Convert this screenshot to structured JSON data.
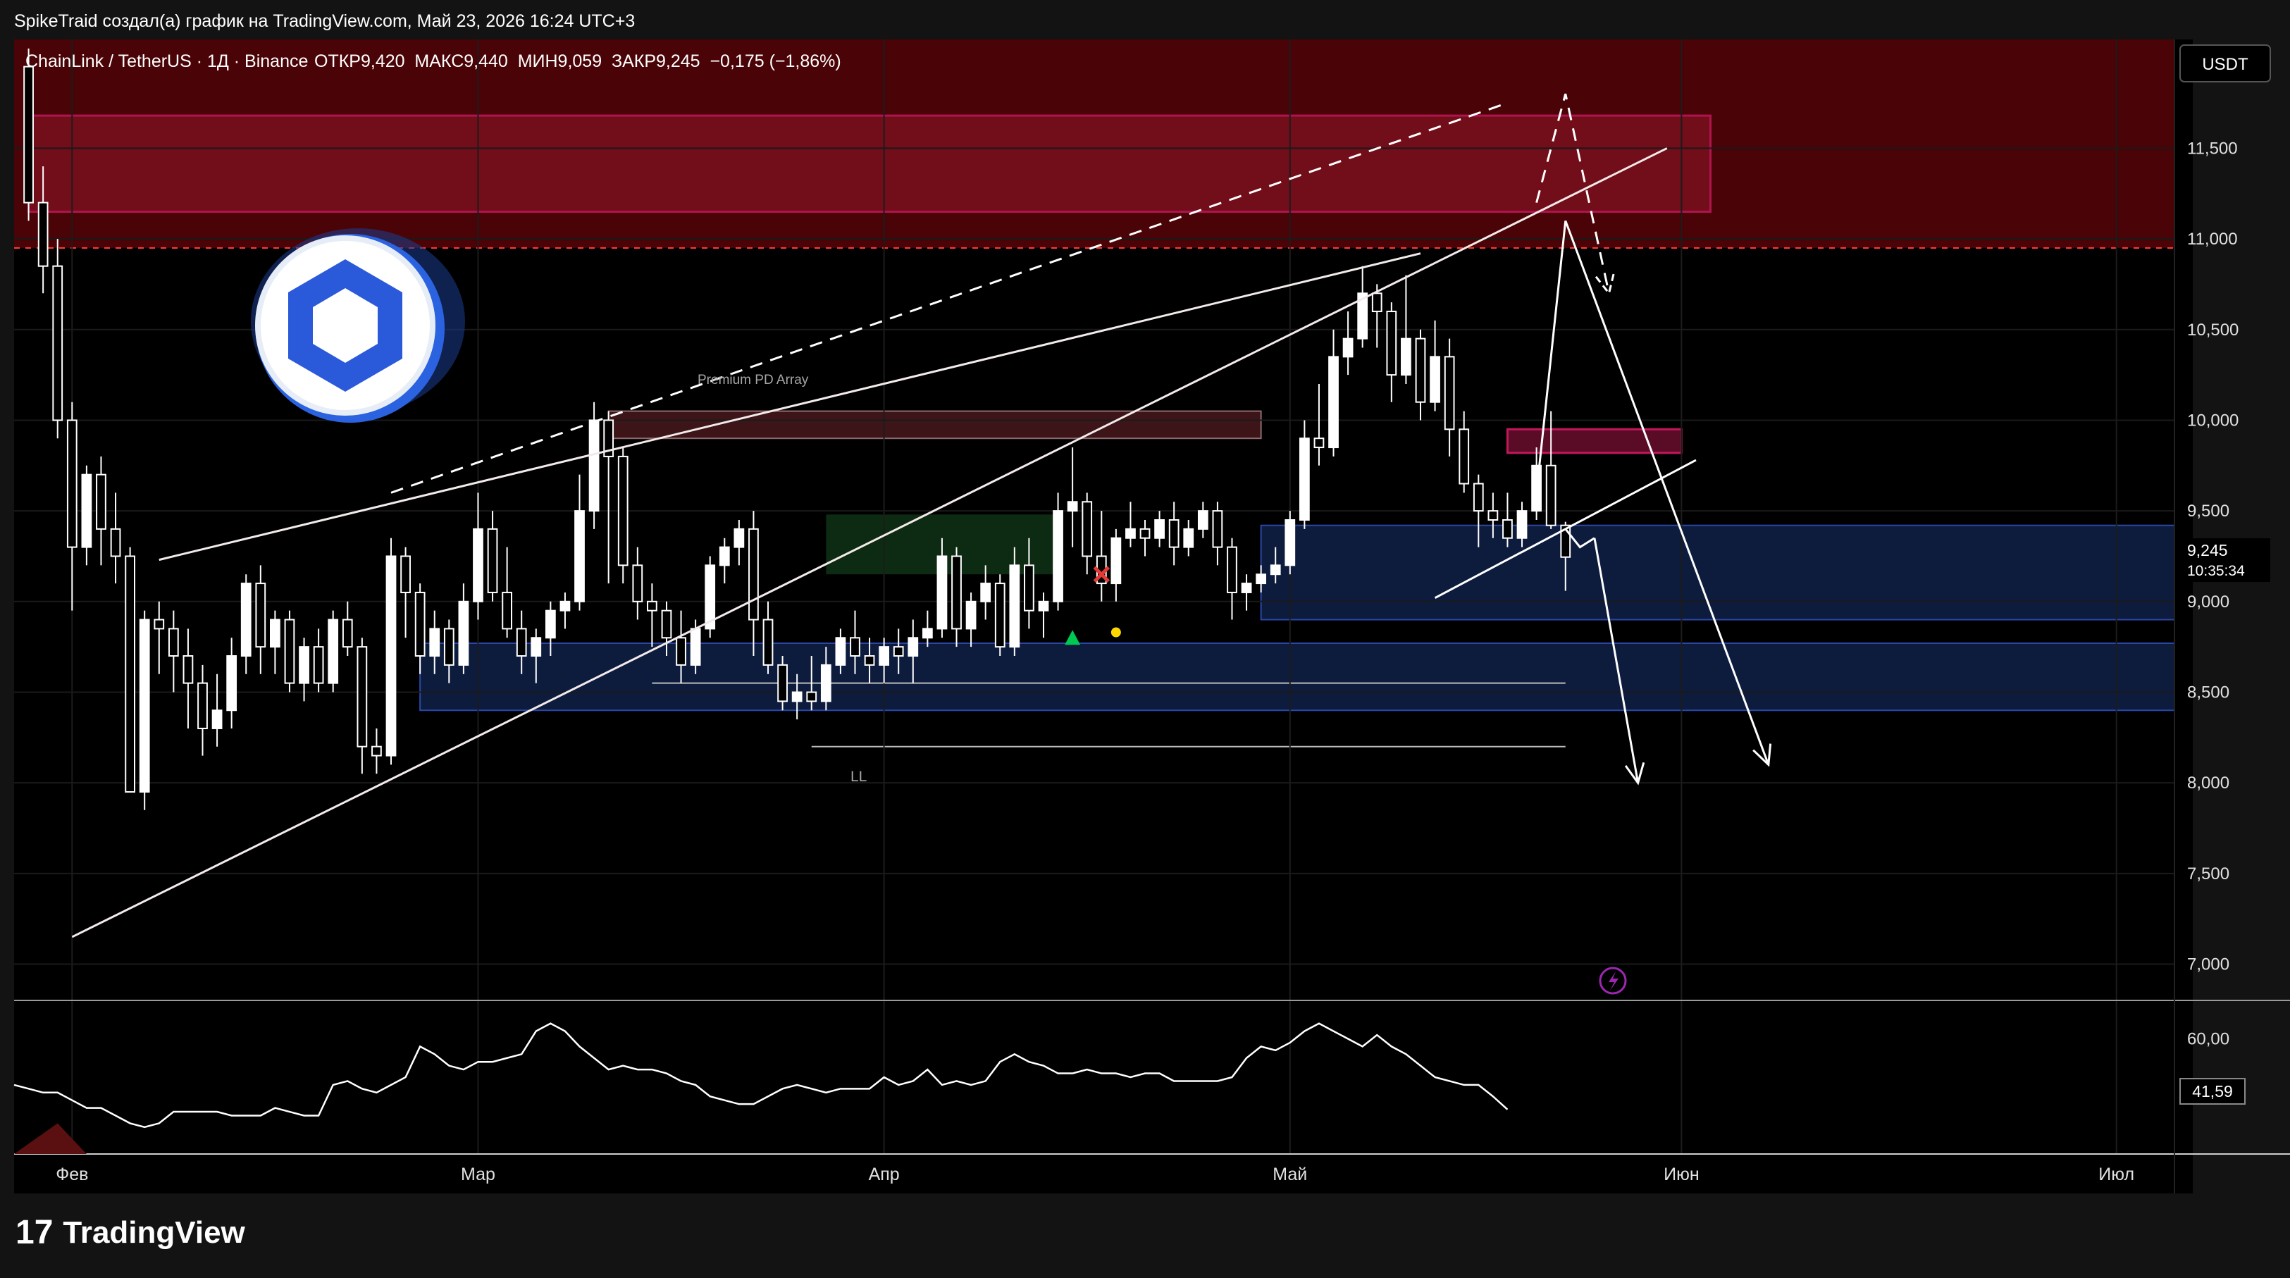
{
  "header": {
    "credit": "SpikeTraid создал(а) график на TradingView.com, Май 23, 2026 16:24 UTC+3",
    "symbol": "ChainLink / TetherUS · 1Д · Binance",
    "ohlc": "ОТКР9,420  МАКС9,440  МИН9,059  ЗАКР9,245  −0,175 (−1,86%)"
  },
  "footer": {
    "brand": "TradingView"
  },
  "chart_data": [
    {
      "type": "candlestick",
      "symbol": "ChainLink / TetherUS",
      "interval": "1Д",
      "exchange": "Binance",
      "currency": "USDT",
      "open": 9.42,
      "high": 9.44,
      "low": 9.059,
      "close": 9.245,
      "change": "−0,175",
      "change_pct": "−1,86%",
      "last_price_label": "9,245",
      "countdown": "10:35:34",
      "ylim": [
        6.8,
        12.1
      ],
      "y_ticks": [
        7.0,
        7.5,
        8.0,
        8.5,
        9.0,
        9.5,
        10.0,
        10.5,
        11.0,
        11.5
      ],
      "y_tick_labels": [
        "7,000",
        "7,500",
        "8,000",
        "8,500",
        "9,000",
        "9,500",
        "10,000",
        "10,500",
        "11,000",
        "11,500"
      ],
      "x_labels": [
        "Фев",
        "Мар",
        "Апр",
        "Май",
        "Июн",
        "Июл"
      ],
      "x_label_days": [
        0,
        28,
        56,
        84,
        111,
        141
      ],
      "x_domain_days": [
        -4,
        145
      ],
      "candles": [
        [
          -3,
          11.95,
          12.05,
          11.1,
          11.2
        ],
        [
          -2,
          11.2,
          11.4,
          10.7,
          10.85
        ],
        [
          -1,
          10.85,
          11.0,
          9.9,
          10.0
        ],
        [
          0,
          10.0,
          10.1,
          8.95,
          9.3
        ],
        [
          1,
          9.3,
          9.75,
          9.2,
          9.7
        ],
        [
          2,
          9.7,
          9.8,
          9.2,
          9.4
        ],
        [
          3,
          9.4,
          9.6,
          9.1,
          9.25
        ],
        [
          4,
          9.25,
          9.3,
          8.0,
          7.95
        ],
        [
          5,
          7.95,
          8.95,
          7.85,
          8.9
        ],
        [
          6,
          8.9,
          9.0,
          8.6,
          8.85
        ],
        [
          7,
          8.85,
          8.95,
          8.5,
          8.7
        ],
        [
          8,
          8.7,
          8.85,
          8.3,
          8.55
        ],
        [
          9,
          8.55,
          8.65,
          8.15,
          8.3
        ],
        [
          10,
          8.3,
          8.6,
          8.2,
          8.4
        ],
        [
          11,
          8.4,
          8.8,
          8.3,
          8.7
        ],
        [
          12,
          8.7,
          9.15,
          8.6,
          9.1
        ],
        [
          13,
          9.1,
          9.2,
          8.6,
          8.75
        ],
        [
          14,
          8.75,
          8.95,
          8.6,
          8.9
        ],
        [
          15,
          8.9,
          8.95,
          8.5,
          8.55
        ],
        [
          16,
          8.55,
          8.8,
          8.45,
          8.75
        ],
        [
          17,
          8.75,
          8.85,
          8.5,
          8.55
        ],
        [
          18,
          8.55,
          8.95,
          8.5,
          8.9
        ],
        [
          19,
          8.9,
          9.0,
          8.7,
          8.75
        ],
        [
          20,
          8.75,
          8.8,
          8.05,
          8.2
        ],
        [
          21,
          8.2,
          8.3,
          8.05,
          8.15
        ],
        [
          22,
          8.15,
          9.35,
          8.1,
          9.25
        ],
        [
          23,
          9.25,
          9.3,
          8.8,
          9.05
        ],
        [
          24,
          9.05,
          9.1,
          8.6,
          8.7
        ],
        [
          25,
          8.7,
          8.95,
          8.6,
          8.85
        ],
        [
          26,
          8.85,
          8.9,
          8.55,
          8.65
        ],
        [
          27,
          8.65,
          9.1,
          8.6,
          9.0
        ],
        [
          28,
          9.0,
          9.6,
          8.9,
          9.4
        ],
        [
          29,
          9.4,
          9.5,
          9.0,
          9.05
        ],
        [
          30,
          9.05,
          9.3,
          8.8,
          8.85
        ],
        [
          31,
          8.85,
          8.95,
          8.6,
          8.7
        ],
        [
          32,
          8.7,
          8.85,
          8.55,
          8.8
        ],
        [
          33,
          8.8,
          9.0,
          8.7,
          8.95
        ],
        [
          34,
          8.95,
          9.05,
          8.85,
          9.0
        ],
        [
          35,
          9.0,
          9.7,
          8.95,
          9.5
        ],
        [
          36,
          9.5,
          10.1,
          9.4,
          10.0
        ],
        [
          37,
          10.0,
          10.05,
          9.1,
          9.8
        ],
        [
          38,
          9.8,
          9.85,
          9.1,
          9.2
        ],
        [
          39,
          9.2,
          9.3,
          8.9,
          9.0
        ],
        [
          40,
          9.0,
          9.1,
          8.75,
          8.95
        ],
        [
          41,
          8.95,
          9.0,
          8.7,
          8.8
        ],
        [
          42,
          8.8,
          8.95,
          8.55,
          8.65
        ],
        [
          43,
          8.65,
          8.9,
          8.6,
          8.85
        ],
        [
          44,
          8.85,
          9.25,
          8.8,
          9.2
        ],
        [
          45,
          9.2,
          9.35,
          9.1,
          9.3
        ],
        [
          46,
          9.3,
          9.45,
          9.2,
          9.4
        ],
        [
          47,
          9.4,
          9.5,
          8.7,
          8.9
        ],
        [
          48,
          8.9,
          9.0,
          8.6,
          8.65
        ],
        [
          49,
          8.65,
          8.7,
          8.4,
          8.45
        ],
        [
          50,
          8.45,
          8.6,
          8.35,
          8.5
        ],
        [
          51,
          8.5,
          8.7,
          8.4,
          8.45
        ],
        [
          52,
          8.45,
          8.75,
          8.4,
          8.65
        ],
        [
          53,
          8.65,
          8.85,
          8.6,
          8.8
        ],
        [
          54,
          8.8,
          8.95,
          8.6,
          8.7
        ],
        [
          55,
          8.7,
          8.8,
          8.55,
          8.65
        ],
        [
          56,
          8.65,
          8.8,
          8.55,
          8.75
        ],
        [
          57,
          8.75,
          8.85,
          8.6,
          8.7
        ],
        [
          58,
          8.7,
          8.9,
          8.55,
          8.8
        ],
        [
          59,
          8.8,
          8.95,
          8.75,
          8.85
        ],
        [
          60,
          8.85,
          9.35,
          8.8,
          9.25
        ],
        [
          61,
          9.25,
          9.3,
          8.75,
          8.85
        ],
        [
          62,
          8.85,
          9.05,
          8.75,
          9.0
        ],
        [
          63,
          9.0,
          9.2,
          8.9,
          9.1
        ],
        [
          64,
          9.1,
          9.15,
          8.7,
          8.75
        ],
        [
          65,
          8.75,
          9.3,
          8.7,
          9.2
        ],
        [
          66,
          9.2,
          9.35,
          8.85,
          8.95
        ],
        [
          67,
          8.95,
          9.05,
          8.8,
          9.0
        ],
        [
          68,
          9.0,
          9.6,
          8.95,
          9.5
        ],
        [
          69,
          9.5,
          9.85,
          9.3,
          9.55
        ],
        [
          70,
          9.55,
          9.6,
          9.15,
          9.25
        ],
        [
          71,
          9.25,
          9.5,
          9.0,
          9.1
        ],
        [
          72,
          9.1,
          9.4,
          9.0,
          9.35
        ],
        [
          73,
          9.35,
          9.55,
          9.3,
          9.4
        ],
        [
          74,
          9.4,
          9.45,
          9.25,
          9.35
        ],
        [
          75,
          9.35,
          9.5,
          9.3,
          9.45
        ],
        [
          76,
          9.45,
          9.55,
          9.2,
          9.3
        ],
        [
          77,
          9.3,
          9.45,
          9.25,
          9.4
        ],
        [
          78,
          9.4,
          9.55,
          9.35,
          9.5
        ],
        [
          79,
          9.5,
          9.55,
          9.2,
          9.3
        ],
        [
          80,
          9.3,
          9.35,
          8.9,
          9.05
        ],
        [
          81,
          9.05,
          9.15,
          8.95,
          9.1
        ],
        [
          82,
          9.1,
          9.2,
          9.05,
          9.15
        ],
        [
          83,
          9.15,
          9.3,
          9.1,
          9.2
        ],
        [
          84,
          9.2,
          9.5,
          9.15,
          9.45
        ],
        [
          85,
          9.45,
          10.0,
          9.4,
          9.9
        ],
        [
          86,
          9.9,
          10.2,
          9.75,
          9.85
        ],
        [
          87,
          9.85,
          10.5,
          9.8,
          10.35
        ],
        [
          88,
          10.35,
          10.6,
          10.25,
          10.45
        ],
        [
          89,
          10.45,
          10.85,
          10.4,
          10.7
        ],
        [
          90,
          10.7,
          10.75,
          10.4,
          10.6
        ],
        [
          91,
          10.6,
          10.65,
          10.1,
          10.25
        ],
        [
          92,
          10.25,
          10.8,
          10.2,
          10.45
        ],
        [
          93,
          10.45,
          10.5,
          10.0,
          10.1
        ],
        [
          94,
          10.1,
          10.55,
          10.05,
          10.35
        ],
        [
          95,
          10.35,
          10.45,
          9.8,
          9.95
        ],
        [
          96,
          9.95,
          10.05,
          9.6,
          9.65
        ],
        [
          97,
          9.65,
          9.7,
          9.3,
          9.5
        ],
        [
          98,
          9.5,
          9.6,
          9.35,
          9.45
        ],
        [
          99,
          9.45,
          9.6,
          9.3,
          9.35
        ],
        [
          100,
          9.35,
          9.55,
          9.3,
          9.5
        ],
        [
          101,
          9.5,
          9.85,
          9.45,
          9.75
        ],
        [
          102,
          9.75,
          10.05,
          9.4,
          9.42
        ],
        [
          103,
          9.42,
          9.44,
          9.059,
          9.245
        ]
      ],
      "zones": [
        {
          "kind": "supply",
          "low": 10.95,
          "high": 12.1,
          "color": "#4a0306"
        },
        {
          "kind": "supply-box",
          "low": 11.15,
          "high": 11.68,
          "from_day": -3,
          "to_day": 113,
          "color": "#c2185b"
        },
        {
          "kind": "premium",
          "low": 9.9,
          "high": 10.05,
          "from_day": 37,
          "to_day": 82,
          "label": "Premium PD Array"
        },
        {
          "kind": "resistance-small",
          "low": 9.82,
          "high": 9.95,
          "from_day": 99,
          "to_day": 111,
          "color": "#c2185b"
        },
        {
          "kind": "demand",
          "low": 8.4,
          "high": 8.77,
          "from_day": 24,
          "to_day": 145,
          "color": "#0d1b3d"
        },
        {
          "kind": "demand",
          "low": 8.9,
          "high": 9.42,
          "from_day": 82,
          "to_day": 145,
          "color": "#0d1b3d"
        },
        {
          "kind": "green",
          "low": 9.15,
          "high": 9.48,
          "from_day": 52,
          "to_day": 68,
          "color": "#0d2a12"
        }
      ],
      "levels": [
        {
          "value": 10.95,
          "style": "dashed",
          "color": "#ff3b3b"
        },
        {
          "value": 8.55,
          "from_day": 40,
          "to_day": 103,
          "color": "#bdbdbd"
        },
        {
          "value": 8.2,
          "from_day": 51,
          "to_day": 103,
          "color": "#bdbdbd",
          "label": "LL"
        }
      ],
      "lines": [
        {
          "points": [
            [
              0,
              7.15
            ],
            [
              110,
              11.5
            ]
          ],
          "style": "solid"
        },
        {
          "points": [
            [
              6,
              9.23
            ],
            [
              93,
              10.92
            ]
          ],
          "style": "solid"
        },
        {
          "points": [
            [
              22,
              9.6
            ],
            [
              99,
              11.75
            ]
          ],
          "style": "dashed"
        },
        {
          "points": [
            [
              94,
              9.02
            ],
            [
              112,
              9.78
            ]
          ],
          "style": "solid"
        },
        {
          "points": [
            [
              103,
              11.1
            ],
            [
              101,
              9.6
            ]
          ],
          "style": "arrow-up"
        },
        {
          "points": [
            [
              103,
              11.1
            ],
            [
              117,
              8.1
            ]
          ],
          "style": "arrow"
        },
        {
          "points": [
            [
              105,
              9.35
            ],
            [
              108,
              8.0
            ]
          ],
          "style": "arrow"
        },
        {
          "points": [
            [
              103,
              9.4
            ],
            [
              104,
              9.3
            ],
            [
              105,
              9.35
            ]
          ],
          "style": "polyline"
        },
        {
          "points": [
            [
              101,
              11.2
            ],
            [
              103,
              11.8
            ],
            [
              106,
              10.7
            ]
          ],
          "style": "dashed-arrow"
        }
      ],
      "markers": [
        {
          "day": 69,
          "value": 8.8,
          "shape": "triangle-up",
          "color": "#00c853"
        },
        {
          "day": 72,
          "value": 8.83,
          "shape": "dot",
          "color": "#ffd600"
        },
        {
          "day": 71,
          "value": 9.15,
          "shape": "x",
          "color": "#e53935"
        }
      ]
    },
    {
      "type": "line",
      "indicator": "RSI",
      "last_value": 41.59,
      "last_value_label": "41,59",
      "y_tick": 60,
      "y_tick_label": "60,00",
      "ylim": [
        30,
        70
      ],
      "values": [
        48,
        47,
        46,
        46,
        44,
        42,
        42,
        40,
        38,
        37,
        38,
        41,
        41,
        41,
        41,
        40,
        40,
        40,
        42,
        41,
        40,
        40,
        48,
        49,
        47,
        46,
        48,
        50,
        58,
        56,
        53,
        52,
        54,
        54,
        55,
        56,
        62,
        64,
        62,
        58,
        55,
        52,
        53,
        52,
        52,
        51,
        49,
        48,
        45,
        44,
        43,
        43,
        45,
        47,
        48,
        47,
        46,
        47,
        47,
        47,
        50,
        48,
        49,
        52,
        48,
        49,
        48,
        49,
        54,
        56,
        54,
        53,
        51,
        51,
        52,
        51,
        51,
        50,
        51,
        51,
        49,
        49,
        49,
        49,
        50,
        55,
        58,
        57,
        59,
        62,
        64,
        62,
        60,
        58,
        61,
        58,
        56,
        53,
        50,
        49,
        48,
        48,
        45,
        41.59
      ]
    }
  ]
}
